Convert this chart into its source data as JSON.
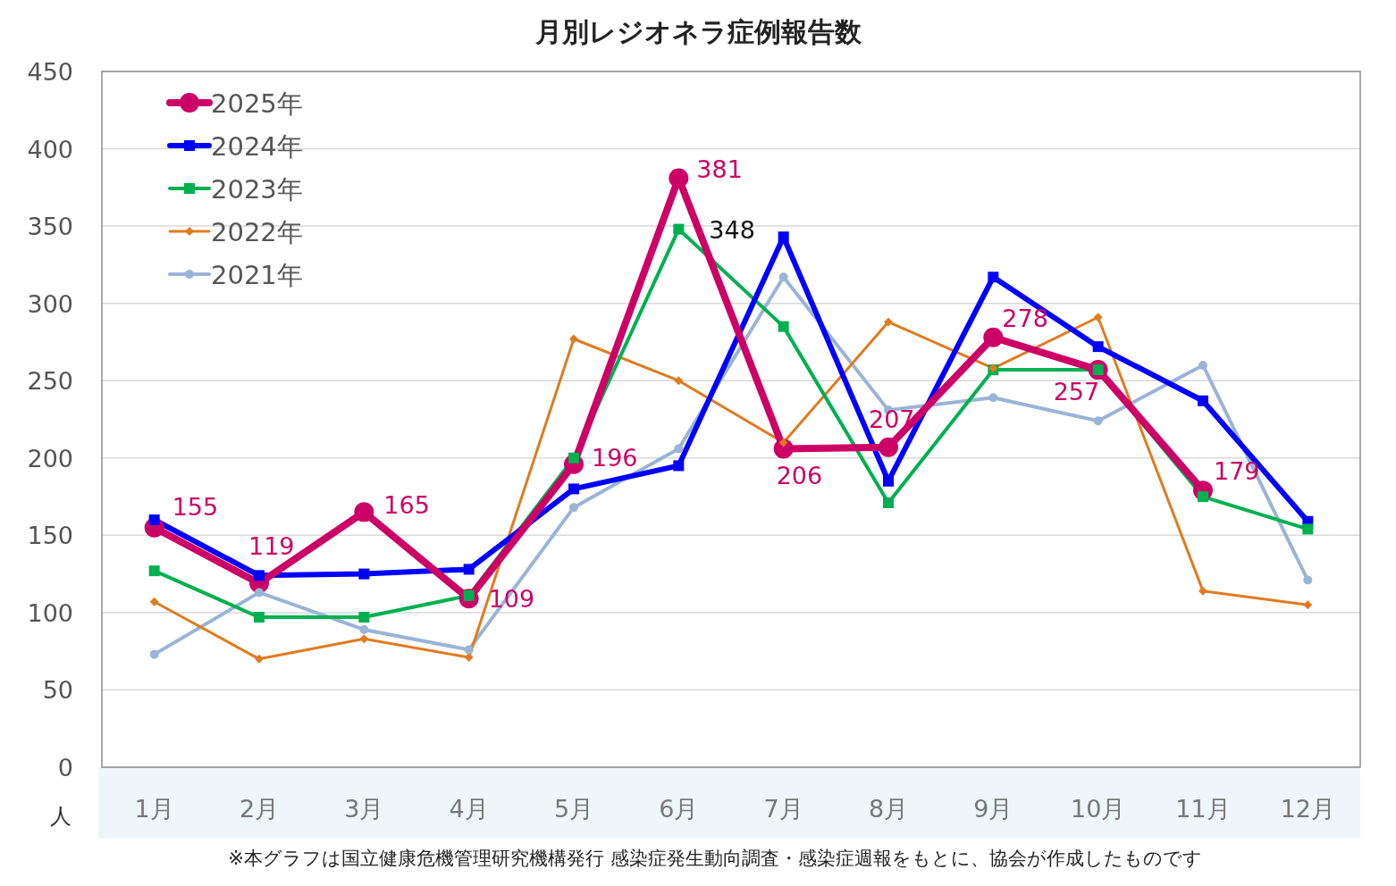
{
  "chart_data": {
    "type": "line",
    "title": "月別レジオネラ症例報告数",
    "ylabel": "人",
    "categories": [
      "1月",
      "2月",
      "3月",
      "4月",
      "5月",
      "6月",
      "7月",
      "8月",
      "9月",
      "10月",
      "11月",
      "12月"
    ],
    "series": [
      {
        "name": "2025年",
        "color": "#cc0066",
        "marker": "circle",
        "values": [
          155,
          119,
          165,
          109,
          196,
          381,
          206,
          207,
          278,
          257,
          179,
          null
        ],
        "value_labels": [
          "155",
          "119",
          "165",
          "109",
          "196",
          "381",
          "206",
          "207",
          "278",
          "257",
          "179",
          null
        ]
      },
      {
        "name": "2024年",
        "color": "#0000ff",
        "marker": "square",
        "values": [
          160,
          124,
          125,
          128,
          180,
          195,
          343,
          185,
          317,
          272,
          237,
          159
        ]
      },
      {
        "name": "2023年",
        "color": "#00b050",
        "marker": "square",
        "values": [
          127,
          97,
          97,
          111,
          200,
          348,
          285,
          171,
          257,
          257,
          175,
          154
        ],
        "value_labels": [
          null,
          null,
          null,
          null,
          null,
          "348",
          null,
          null,
          null,
          null,
          null,
          null
        ]
      },
      {
        "name": "2022年",
        "color": "#e07b20",
        "marker": "diamond",
        "values": [
          107,
          70,
          83,
          71,
          277,
          250,
          210,
          288,
          258,
          291,
          114,
          105
        ]
      },
      {
        "name": "2021年",
        "color": "#9ab4d6",
        "marker": "circle",
        "values": [
          73,
          113,
          89,
          76,
          168,
          206,
          317,
          231,
          239,
          224,
          260,
          121
        ]
      }
    ],
    "ylim": [
      0,
      450
    ],
    "yticks": [
      0,
      50,
      100,
      150,
      200,
      250,
      300,
      350,
      400,
      450
    ],
    "grid": "y",
    "legend": "top left",
    "annotations": [
      "※本グラフは国立健康危機管理研究機構発行 感染症発生動向調査・感染症週報をもとに、協会が作成したものです"
    ]
  }
}
